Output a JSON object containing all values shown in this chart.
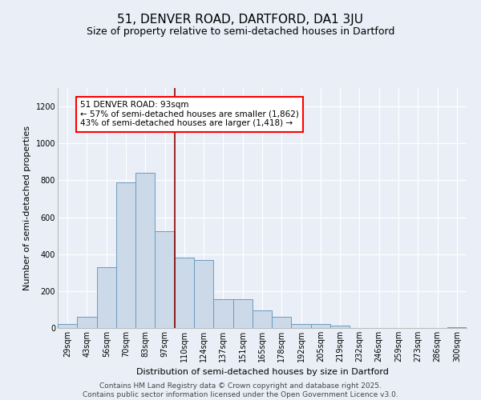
{
  "title": "51, DENVER ROAD, DARTFORD, DA1 3JU",
  "subtitle": "Size of property relative to semi-detached houses in Dartford",
  "xlabel": "Distribution of semi-detached houses by size in Dartford",
  "ylabel": "Number of semi-detached properties",
  "categories": [
    "29sqm",
    "43sqm",
    "56sqm",
    "70sqm",
    "83sqm",
    "97sqm",
    "110sqm",
    "124sqm",
    "137sqm",
    "151sqm",
    "165sqm",
    "178sqm",
    "192sqm",
    "205sqm",
    "219sqm",
    "232sqm",
    "246sqm",
    "259sqm",
    "273sqm",
    "286sqm",
    "300sqm"
  ],
  "values": [
    20,
    60,
    330,
    790,
    840,
    525,
    380,
    370,
    155,
    155,
    95,
    60,
    20,
    20,
    15,
    0,
    0,
    0,
    0,
    0,
    5
  ],
  "bar_color": "#ccd9e8",
  "bar_edge_color": "#6a9cc0",
  "bg_color": "#eaeff7",
  "red_line_x": 5.5,
  "annotation_text": "51 DENVER ROAD: 93sqm\n← 57% of semi-detached houses are smaller (1,862)\n43% of semi-detached houses are larger (1,418) →",
  "footer_text": "Contains HM Land Registry data © Crown copyright and database right 2025.\nContains public sector information licensed under the Open Government Licence v3.0.",
  "ylim": [
    0,
    1300
  ],
  "yticks": [
    0,
    200,
    400,
    600,
    800,
    1000,
    1200
  ],
  "title_fontsize": 11,
  "subtitle_fontsize": 9,
  "xlabel_fontsize": 8,
  "ylabel_fontsize": 8,
  "tick_fontsize": 7,
  "annotation_fontsize": 7.5,
  "footer_fontsize": 6.5
}
